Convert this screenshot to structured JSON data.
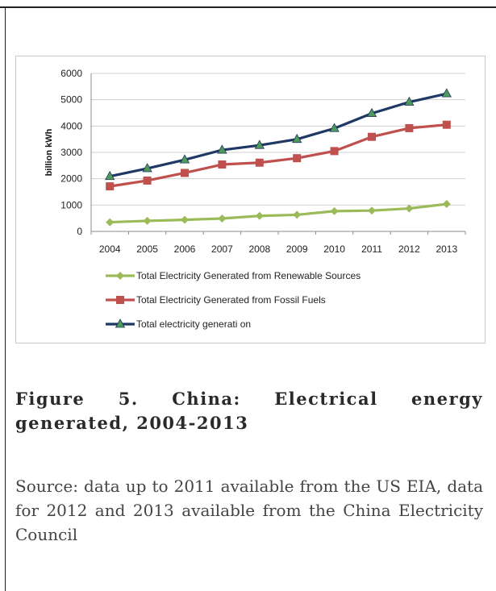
{
  "figure": {
    "caption": "Figure 5. China: Electrical energy generated, 2004-2013",
    "source": "Source: data up to 2011 available from the US EIA, data for 2012 and 2013 available from the China Electricity Council"
  },
  "chart_data": {
    "type": "line",
    "title": "",
    "xlabel": "",
    "ylabel": "billion kWh",
    "ylim": [
      0,
      6000
    ],
    "yticks": [
      0,
      1000,
      2000,
      3000,
      4000,
      5000,
      6000
    ],
    "x": [
      "2004",
      "2005",
      "2006",
      "2007",
      "2008",
      "2009",
      "2010",
      "2011",
      "2012",
      "2013"
    ],
    "grid": "horizontal",
    "legend_position": "bottom",
    "series": [
      {
        "name": "Total Electricity Generated from Renewable Sources",
        "color": "#9bbb59",
        "marker": "diamond",
        "values": [
          350,
          400,
          440,
          490,
          590,
          630,
          770,
          790,
          870,
          1040
        ]
      },
      {
        "name": "Total Electricity Generated from Fossil Fuels",
        "color": "#c0504d",
        "marker": "square",
        "values": [
          1710,
          1930,
          2220,
          2540,
          2610,
          2780,
          3050,
          3590,
          3920,
          4050
        ]
      },
      {
        "name": "Total electricity generati on",
        "color": "#1f3864",
        "marker": "triangle",
        "values": [
          2090,
          2390,
          2720,
          3090,
          3270,
          3500,
          3910,
          4480,
          4910,
          5230
        ]
      }
    ]
  }
}
